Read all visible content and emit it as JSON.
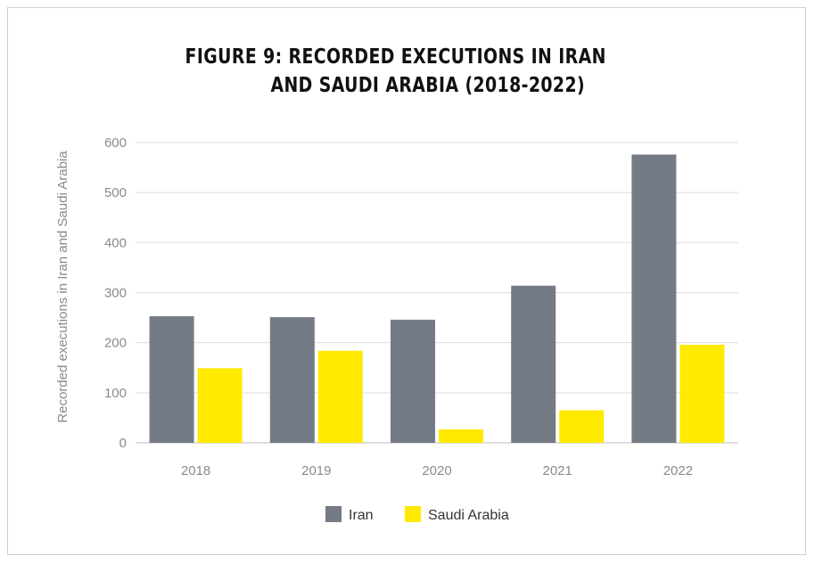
{
  "chart_data": {
    "type": "bar",
    "title_line1": "FIGURE 9: RECORDED EXECUTIONS IN IRAN",
    "title_line2": "AND SAUDI ARABIA (2018-2022)",
    "ylabel": "Recorded executions in Iran and Saudi Arabia",
    "xlabel": "",
    "categories": [
      "2018",
      "2019",
      "2020",
      "2021",
      "2022"
    ],
    "ylim": [
      0,
      600
    ],
    "yticks": [
      0,
      100,
      200,
      300,
      400,
      500,
      600
    ],
    "grid": true,
    "legend_position": "bottom-center",
    "series": [
      {
        "name": "Iran",
        "color": "#747b84",
        "values": [
          253,
          251,
          246,
          314,
          576
        ]
      },
      {
        "name": "Saudi Arabia",
        "color": "#ffea00",
        "values": [
          149,
          184,
          27,
          65,
          196
        ]
      }
    ]
  }
}
